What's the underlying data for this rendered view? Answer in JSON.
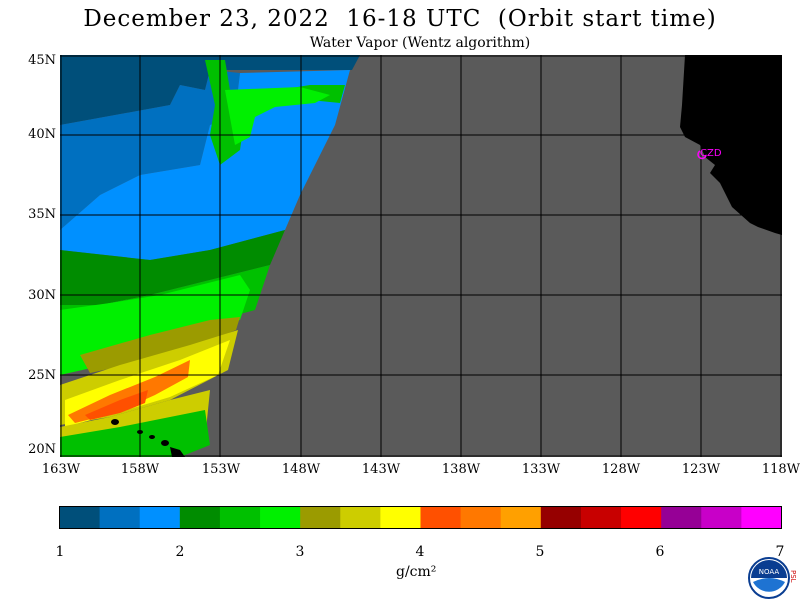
{
  "header": {
    "title": "December 23, 2022  16-18 UTC  (Orbit start time)",
    "subtitle": "Water Vapor (Wentz algorithm)"
  },
  "map": {
    "lat_labels": [
      "45N",
      "40N",
      "35N",
      "30N",
      "25N",
      "20N"
    ],
    "lon_labels": [
      "163W",
      "158W",
      "153W",
      "148W",
      "143W",
      "138W",
      "133W",
      "128W",
      "123W",
      "118W"
    ],
    "station_label": "CZD",
    "colors": {
      "no_data": "#5a5a5a",
      "land": "#000000",
      "grid": "#000000",
      "station": "#ff00ff"
    }
  },
  "colorbar": {
    "tick_labels": [
      "1",
      "2",
      "3",
      "4",
      "5",
      "6",
      "7"
    ],
    "units": "g/cm²",
    "colors": [
      "#004f7a",
      "#0070c0",
      "#0090ff",
      "#008c00",
      "#00c000",
      "#00f000",
      "#9b9b00",
      "#cdcd00",
      "#ffff00",
      "#ff5000",
      "#ff7800",
      "#ffa000",
      "#960000",
      "#c80000",
      "#ff0000",
      "#960096",
      "#c800c8",
      "#ff00ff"
    ]
  },
  "logo": {
    "name": "noaa-logo",
    "text": "NOAA",
    "side_text": "PSL"
  }
}
